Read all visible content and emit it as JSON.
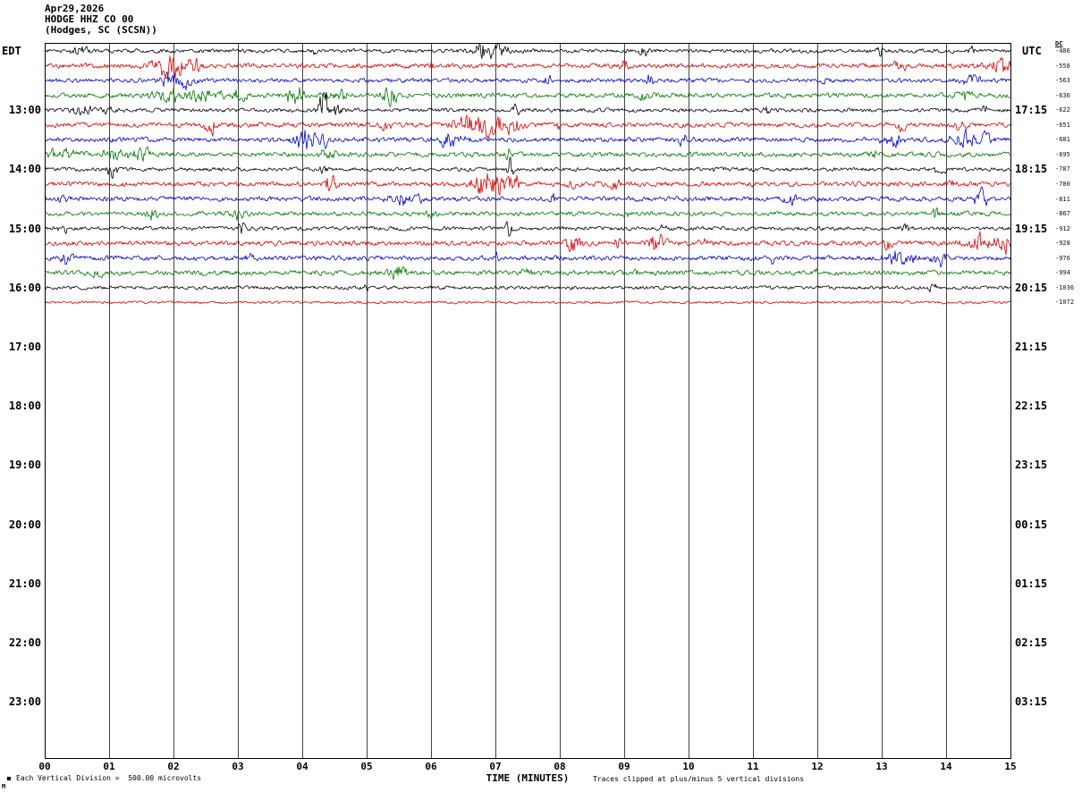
{
  "header": {
    "date": "Apr29,2026",
    "station": "HODGE HHZ CO 00",
    "location": "(Hodges, SC (SCSN))",
    "left_tz": "EDT",
    "right_tz": "UTC",
    "dc_header": "DC"
  },
  "footer": {
    "scale_note": "Each Vertical Division =  500.00 microvolts",
    "xlabel": "TIME (MINUTES)",
    "clip_note": "Traces clipped at plus/minus 5 vertical divisions",
    "corner_mark": "M"
  },
  "chart_data": {
    "type": "line",
    "subtype": "helicorder-seismogram",
    "title": "HODGE HHZ CO 00 (Hodges, SC (SCSN)) Apr29,2026",
    "xlabel": "TIME (MINUTES)",
    "x_ticks": [
      "00",
      "01",
      "02",
      "03",
      "04",
      "05",
      "06",
      "07",
      "08",
      "09",
      "10",
      "11",
      "12",
      "13",
      "14",
      "15"
    ],
    "x_range_minutes": [
      0,
      15
    ],
    "minutes_per_row": 15,
    "rows_total": 48,
    "grid": "vertical-only",
    "clip_divisions": 5,
    "microvolts_per_division": 500.0,
    "left_hour_labels": [
      {
        "row": 4,
        "label": "13:00"
      },
      {
        "row": 8,
        "label": "14:00"
      },
      {
        "row": 12,
        "label": "15:00"
      },
      {
        "row": 16,
        "label": "16:00"
      },
      {
        "row": 20,
        "label": "17:00"
      },
      {
        "row": 24,
        "label": "18:00"
      },
      {
        "row": 28,
        "label": "19:00"
      },
      {
        "row": 32,
        "label": "20:00"
      },
      {
        "row": 36,
        "label": "21:00"
      },
      {
        "row": 40,
        "label": "22:00"
      },
      {
        "row": 44,
        "label": "23:00"
      }
    ],
    "right_hour_labels": [
      {
        "row": 4,
        "label": "17:15"
      },
      {
        "row": 8,
        "label": "18:15"
      },
      {
        "row": 12,
        "label": "19:15"
      },
      {
        "row": 16,
        "label": "20:15"
      },
      {
        "row": 20,
        "label": "21:15"
      },
      {
        "row": 24,
        "label": "22:15"
      },
      {
        "row": 28,
        "label": "23:15"
      },
      {
        "row": 32,
        "label": "00:15"
      },
      {
        "row": 36,
        "label": "01:15"
      },
      {
        "row": 40,
        "label": "02:15"
      },
      {
        "row": 44,
        "label": "03:15"
      }
    ],
    "colors": {
      "black": "#000000",
      "red": "#dd0000",
      "blue": "#0000cc",
      "green": "#007700"
    },
    "traces": [
      {
        "row": 0,
        "color": "black",
        "dc": -486,
        "base": 1.8,
        "events": [
          [
            0.55,
            0.15,
            4
          ],
          [
            4.2,
            0.1,
            4
          ],
          [
            6.85,
            0.2,
            9
          ],
          [
            7.1,
            0.1,
            11
          ],
          [
            9.3,
            0.07,
            6
          ],
          [
            13.0,
            0.08,
            5
          ],
          [
            14.4,
            0.1,
            4
          ]
        ]
      },
      {
        "row": 1,
        "color": "red",
        "dc": -558,
        "base": 2.2,
        "events": [
          [
            1.75,
            0.2,
            6
          ],
          [
            2.0,
            0.25,
            11
          ],
          [
            2.3,
            0.15,
            8
          ],
          [
            6.0,
            0.08,
            4
          ],
          [
            9.0,
            0.06,
            5
          ],
          [
            13.3,
            0.1,
            6
          ],
          [
            14.85,
            0.2,
            9
          ]
        ]
      },
      {
        "row": 2,
        "color": "blue",
        "dc": -563,
        "base": 2.0,
        "events": [
          [
            1.95,
            0.2,
            7
          ],
          [
            2.15,
            0.15,
            9
          ],
          [
            7.8,
            0.08,
            5
          ],
          [
            9.4,
            0.04,
            13
          ],
          [
            12.1,
            0.06,
            4
          ],
          [
            14.4,
            0.15,
            5
          ]
        ]
      },
      {
        "row": 3,
        "color": "green",
        "dc": -636,
        "base": 2.2,
        "events": [
          [
            1.9,
            0.3,
            7
          ],
          [
            2.4,
            0.4,
            6
          ],
          [
            3.0,
            0.3,
            5
          ],
          [
            3.9,
            0.2,
            9
          ],
          [
            4.6,
            0.2,
            5
          ],
          [
            5.35,
            0.15,
            9
          ],
          [
            9.3,
            0.1,
            5
          ],
          [
            14.3,
            0.15,
            6
          ]
        ]
      },
      {
        "row": 4,
        "color": "black",
        "dc": -622,
        "base": 1.8,
        "events": [
          [
            0.6,
            0.25,
            5
          ],
          [
            1.0,
            0.1,
            5
          ],
          [
            4.33,
            0.09,
            20
          ],
          [
            4.45,
            0.15,
            8
          ],
          [
            7.3,
            0.07,
            6
          ],
          [
            11.2,
            0.05,
            6
          ],
          [
            14.6,
            0.08,
            5
          ]
        ]
      },
      {
        "row": 5,
        "color": "red",
        "dc": -651,
        "base": 2.2,
        "events": [
          [
            2.6,
            0.12,
            9
          ],
          [
            5.3,
            0.1,
            5
          ],
          [
            6.6,
            0.25,
            10
          ],
          [
            6.95,
            0.25,
            13
          ],
          [
            7.3,
            0.15,
            8
          ],
          [
            8.0,
            0.08,
            6
          ],
          [
            13.3,
            0.08,
            7
          ],
          [
            14.2,
            0.1,
            5
          ]
        ]
      },
      {
        "row": 6,
        "color": "blue",
        "dc": -681,
        "base": 2.2,
        "events": [
          [
            4.05,
            0.2,
            11
          ],
          [
            4.3,
            0.1,
            7
          ],
          [
            6.3,
            0.2,
            7
          ],
          [
            9.9,
            0.08,
            6
          ],
          [
            13.15,
            0.2,
            7
          ],
          [
            14.3,
            0.2,
            9
          ],
          [
            14.6,
            0.1,
            7
          ]
        ]
      },
      {
        "row": 7,
        "color": "green",
        "dc": -695,
        "base": 2.2,
        "events": [
          [
            0.3,
            0.3,
            6
          ],
          [
            1.1,
            0.2,
            6
          ],
          [
            1.5,
            0.15,
            7
          ],
          [
            4.4,
            0.15,
            5
          ],
          [
            7.2,
            0.06,
            8
          ],
          [
            12.9,
            0.1,
            4
          ]
        ]
      },
      {
        "row": 8,
        "color": "black",
        "dc": -787,
        "base": 1.8,
        "events": [
          [
            1.05,
            0.08,
            9
          ],
          [
            4.3,
            0.08,
            6
          ],
          [
            7.25,
            0.05,
            18
          ],
          [
            10.4,
            0.05,
            4
          ],
          [
            13.9,
            0.08,
            6
          ]
        ]
      },
      {
        "row": 9,
        "color": "red",
        "dc": -780,
        "base": 2.2,
        "events": [
          [
            4.45,
            0.08,
            11
          ],
          [
            6.8,
            0.2,
            14
          ],
          [
            7.05,
            0.2,
            13
          ],
          [
            7.3,
            0.1,
            8
          ],
          [
            8.15,
            0.08,
            8
          ],
          [
            8.85,
            0.08,
            6
          ],
          [
            11.0,
            0.05,
            4
          ],
          [
            14.1,
            0.08,
            5
          ]
        ]
      },
      {
        "row": 10,
        "color": "blue",
        "dc": -811,
        "base": 2.2,
        "events": [
          [
            0.3,
            0.1,
            4
          ],
          [
            5.6,
            0.25,
            8
          ],
          [
            7.9,
            0.08,
            5
          ],
          [
            9.1,
            0.06,
            4
          ],
          [
            11.6,
            0.15,
            6
          ],
          [
            14.55,
            0.12,
            8
          ]
        ]
      },
      {
        "row": 11,
        "color": "green",
        "dc": -867,
        "base": 2.0,
        "events": [
          [
            1.65,
            0.08,
            8
          ],
          [
            3.0,
            0.15,
            5
          ],
          [
            6.0,
            0.1,
            4
          ],
          [
            9.0,
            0.08,
            4
          ],
          [
            13.85,
            0.05,
            9
          ]
        ]
      },
      {
        "row": 12,
        "color": "black",
        "dc": -912,
        "base": 1.8,
        "events": [
          [
            0.3,
            0.08,
            4
          ],
          [
            3.05,
            0.06,
            8
          ],
          [
            7.2,
            0.05,
            13
          ],
          [
            9.6,
            0.05,
            4
          ],
          [
            13.4,
            0.08,
            4
          ]
        ]
      },
      {
        "row": 13,
        "color": "red",
        "dc": -928,
        "base": 2.2,
        "events": [
          [
            8.2,
            0.12,
            11
          ],
          [
            8.9,
            0.08,
            7
          ],
          [
            9.5,
            0.15,
            9
          ],
          [
            10.2,
            0.1,
            6
          ],
          [
            13.1,
            0.08,
            7
          ],
          [
            14.5,
            0.3,
            9
          ],
          [
            14.9,
            0.15,
            11
          ]
        ]
      },
      {
        "row": 14,
        "color": "blue",
        "dc": -976,
        "base": 2.2,
        "events": [
          [
            0.35,
            0.12,
            7
          ],
          [
            3.2,
            0.08,
            4
          ],
          [
            7.0,
            0.08,
            5
          ],
          [
            11.3,
            0.06,
            4
          ],
          [
            13.3,
            0.25,
            8
          ],
          [
            13.9,
            0.15,
            9
          ]
        ]
      },
      {
        "row": 15,
        "color": "green",
        "dc": -994,
        "base": 2.2,
        "events": [
          [
            0.8,
            0.15,
            4
          ],
          [
            5.5,
            0.15,
            7
          ],
          [
            7.5,
            0.1,
            4
          ],
          [
            9.2,
            0.08,
            5
          ],
          [
            12.0,
            0.06,
            4
          ]
        ]
      },
      {
        "row": 16,
        "color": "black",
        "dc": -1036,
        "base": 1.6,
        "events": [
          [
            5.0,
            0.05,
            3
          ],
          [
            13.8,
            0.08,
            4
          ]
        ]
      },
      {
        "row": 17,
        "color": "red",
        "dc": -1072,
        "base": 1.2,
        "events": []
      }
    ]
  }
}
